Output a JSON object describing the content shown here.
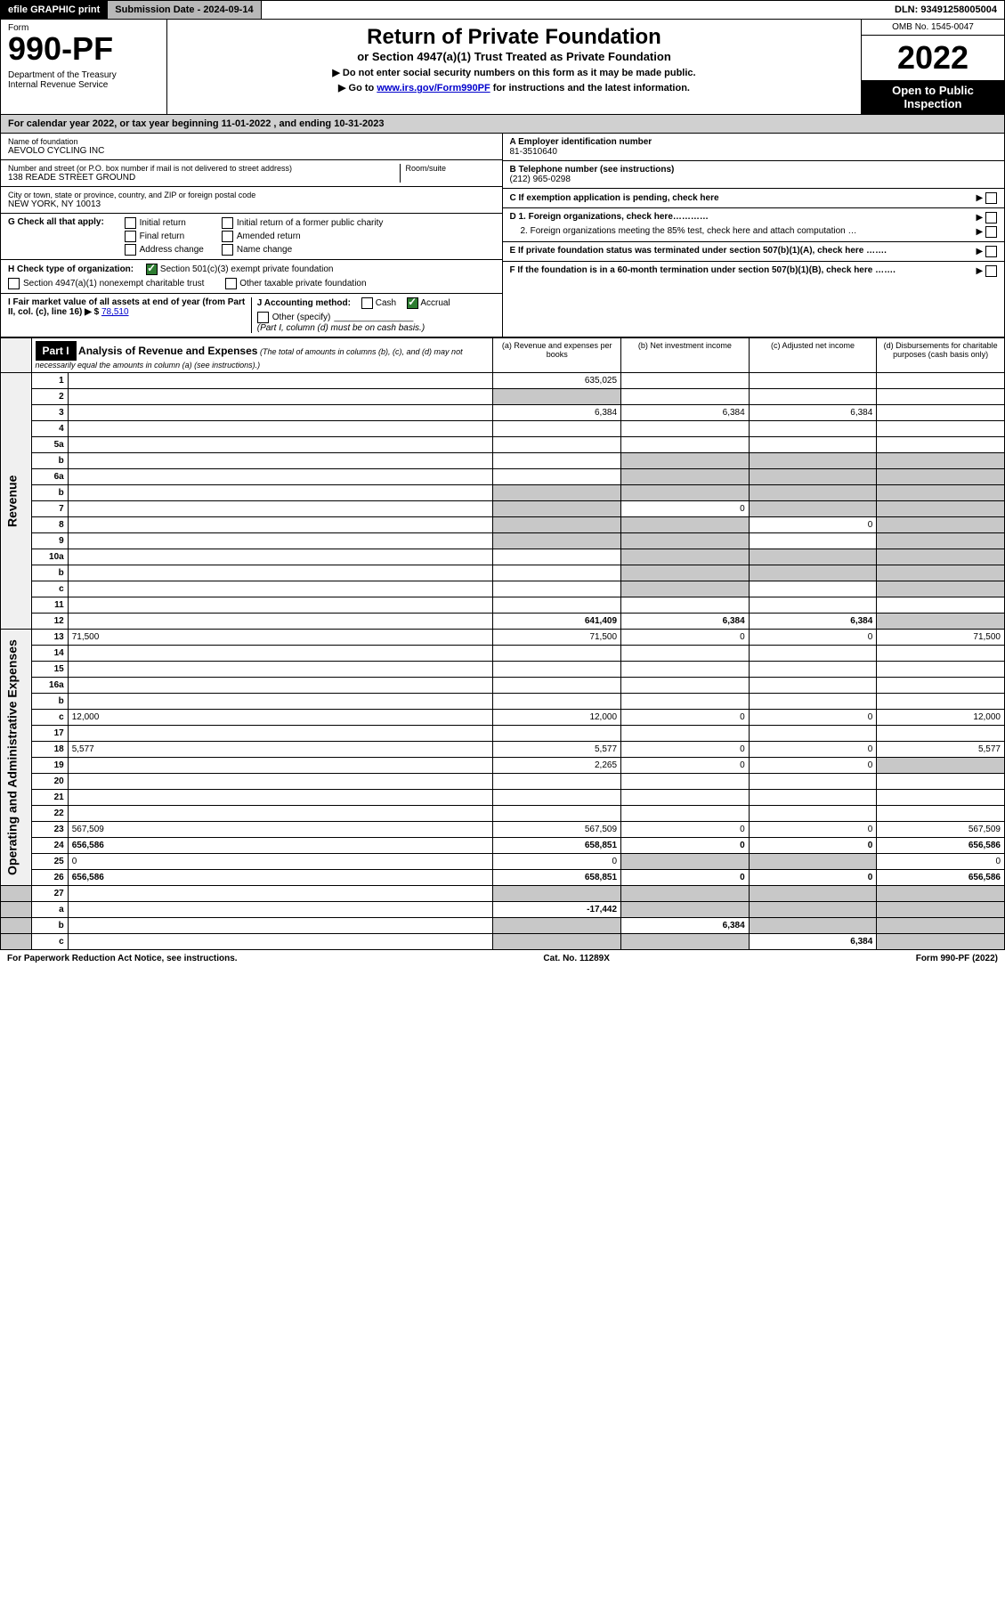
{
  "top_bar": {
    "efile": "efile GRAPHIC print",
    "submission": "Submission Date - 2024-09-14",
    "dln": "DLN: 93491258005004"
  },
  "header": {
    "form_label": "Form",
    "form_number": "990-PF",
    "dept": "Department of the Treasury\nInternal Revenue Service",
    "title": "Return of Private Foundation",
    "subtitle1": "or Section 4947(a)(1) Trust Treated as Private Foundation",
    "subtitle2": "▶ Do not enter social security numbers on this form as it may be made public.",
    "subtitle3_pre": "▶ Go to ",
    "subtitle3_link": "www.irs.gov/Form990PF",
    "subtitle3_post": " for instructions and the latest information.",
    "omb": "OMB No. 1545-0047",
    "year": "2022",
    "open": "Open to Public Inspection"
  },
  "calendar_row": "For calendar year 2022, or tax year beginning 11-01-2022                          , and ending 10-31-2023",
  "info_left": {
    "name_lbl": "Name of foundation",
    "name_val": "AEVOLO CYCLING INC",
    "addr_lbl": "Number and street (or P.O. box number if mail is not delivered to street address)",
    "addr_val": "138 READE STREET GROUND",
    "room_lbl": "Room/suite",
    "city_lbl": "City or town, state or province, country, and ZIP or foreign postal code",
    "city_val": "NEW YORK, NY  10013",
    "g_label": "G Check all that apply:",
    "g_opts": [
      "Initial return",
      "Final return",
      "Address change",
      "Initial return of a former public charity",
      "Amended return",
      "Name change"
    ],
    "h_label": "H Check type of organization:",
    "h_opt1": "Section 501(c)(3) exempt private foundation",
    "h_opt2": "Section 4947(a)(1) nonexempt charitable trust",
    "h_opt3": "Other taxable private foundation",
    "i_label": "I Fair market value of all assets at end of year (from Part II, col. (c), line 16) ▶ $",
    "i_val": "78,510",
    "j_label": "J Accounting method:",
    "j_cash": "Cash",
    "j_accrual": "Accrual",
    "j_other": "Other (specify)",
    "j_note": "(Part I, column (d) must be on cash basis.)"
  },
  "info_right": {
    "a_lbl": "A Employer identification number",
    "a_val": "81-3510640",
    "b_lbl": "B Telephone number (see instructions)",
    "b_val": "(212) 965-0298",
    "c_lbl": "C If exemption application is pending, check here",
    "d1_lbl": "D 1. Foreign organizations, check here…………",
    "d2_lbl": "2. Foreign organizations meeting the 85% test, check here and attach computation …",
    "e_lbl": "E If private foundation status was terminated under section 507(b)(1)(A), check here …….",
    "f_lbl": "F If the foundation is in a 60-month termination under section 507(b)(1)(B), check here ……."
  },
  "part1": {
    "label": "Part I",
    "title": "Analysis of Revenue and Expenses",
    "title_note": "(The total of amounts in columns (b), (c), and (d) may not necessarily equal the amounts in column (a) (see instructions).)",
    "col_a": "(a) Revenue and expenses per books",
    "col_b": "(b) Net investment income",
    "col_c": "(c) Adjusted net income",
    "col_d": "(d) Disbursements for charitable purposes (cash basis only)"
  },
  "sections": {
    "revenue_label": "Revenue",
    "expenses_label": "Operating and Administrative Expenses"
  },
  "rows": [
    {
      "n": "1",
      "d": "",
      "a": "635,025",
      "b": "",
      "c": "",
      "sec": "rev"
    },
    {
      "n": "2",
      "d": "",
      "a": "",
      "b": "",
      "c": "",
      "sec": "rev",
      "gray_a": true
    },
    {
      "n": "3",
      "d": "",
      "a": "6,384",
      "b": "6,384",
      "c": "6,384",
      "sec": "rev"
    },
    {
      "n": "4",
      "d": "",
      "a": "",
      "b": "",
      "c": "",
      "sec": "rev"
    },
    {
      "n": "5a",
      "d": "",
      "a": "",
      "b": "",
      "c": "",
      "sec": "rev"
    },
    {
      "n": "b",
      "d": "",
      "a": "",
      "b": "",
      "c": "",
      "sec": "rev",
      "gray_bcd": true
    },
    {
      "n": "6a",
      "d": "",
      "a": "",
      "b": "",
      "c": "",
      "sec": "rev",
      "gray_bcd": true
    },
    {
      "n": "b",
      "d": "",
      "a": "",
      "b": "",
      "c": "",
      "sec": "rev",
      "gray_all": true
    },
    {
      "n": "7",
      "d": "",
      "a": "",
      "b": "0",
      "c": "",
      "sec": "rev",
      "gray_acd": true
    },
    {
      "n": "8",
      "d": "",
      "a": "",
      "b": "",
      "c": "0",
      "sec": "rev",
      "gray_abd": true
    },
    {
      "n": "9",
      "d": "",
      "a": "",
      "b": "",
      "c": "",
      "sec": "rev",
      "gray_abd": true
    },
    {
      "n": "10a",
      "d": "",
      "a": "",
      "b": "",
      "c": "",
      "sec": "rev",
      "gray_bcd": true
    },
    {
      "n": "b",
      "d": "",
      "a": "",
      "b": "",
      "c": "",
      "sec": "rev",
      "gray_bcd": true
    },
    {
      "n": "c",
      "d": "",
      "a": "",
      "b": "",
      "c": "",
      "sec": "rev",
      "gray_bd": true
    },
    {
      "n": "11",
      "d": "",
      "a": "",
      "b": "",
      "c": "",
      "sec": "rev"
    },
    {
      "n": "12",
      "d": "",
      "a": "641,409",
      "b": "6,384",
      "c": "6,384",
      "sec": "rev",
      "bold": true,
      "gray_d": true
    },
    {
      "n": "13",
      "d": "71,500",
      "a": "71,500",
      "b": "0",
      "c": "0",
      "sec": "exp"
    },
    {
      "n": "14",
      "d": "",
      "a": "",
      "b": "",
      "c": "",
      "sec": "exp"
    },
    {
      "n": "15",
      "d": "",
      "a": "",
      "b": "",
      "c": "",
      "sec": "exp"
    },
    {
      "n": "16a",
      "d": "",
      "a": "",
      "b": "",
      "c": "",
      "sec": "exp"
    },
    {
      "n": "b",
      "d": "",
      "a": "",
      "b": "",
      "c": "",
      "sec": "exp"
    },
    {
      "n": "c",
      "d": "12,000",
      "a": "12,000",
      "b": "0",
      "c": "0",
      "sec": "exp"
    },
    {
      "n": "17",
      "d": "",
      "a": "",
      "b": "",
      "c": "",
      "sec": "exp"
    },
    {
      "n": "18",
      "d": "5,577",
      "a": "5,577",
      "b": "0",
      "c": "0",
      "sec": "exp"
    },
    {
      "n": "19",
      "d": "",
      "a": "2,265",
      "b": "0",
      "c": "0",
      "sec": "exp",
      "gray_d": true
    },
    {
      "n": "20",
      "d": "",
      "a": "",
      "b": "",
      "c": "",
      "sec": "exp"
    },
    {
      "n": "21",
      "d": "",
      "a": "",
      "b": "",
      "c": "",
      "sec": "exp"
    },
    {
      "n": "22",
      "d": "",
      "a": "",
      "b": "",
      "c": "",
      "sec": "exp"
    },
    {
      "n": "23",
      "d": "567,509",
      "a": "567,509",
      "b": "0",
      "c": "0",
      "sec": "exp"
    },
    {
      "n": "24",
      "d": "656,586",
      "a": "658,851",
      "b": "0",
      "c": "0",
      "sec": "exp",
      "bold": true
    },
    {
      "n": "25",
      "d": "0",
      "a": "0",
      "b": "",
      "c": "",
      "sec": "exp",
      "gray_bc": true
    },
    {
      "n": "26",
      "d": "656,586",
      "a": "658,851",
      "b": "0",
      "c": "0",
      "sec": "exp",
      "bold": true
    },
    {
      "n": "27",
      "d": "",
      "a": "",
      "b": "",
      "c": "",
      "sec": "none",
      "gray_all": true
    },
    {
      "n": "a",
      "d": "",
      "a": "-17,442",
      "b": "",
      "c": "",
      "sec": "none",
      "bold": true,
      "gray_bcd": true
    },
    {
      "n": "b",
      "d": "",
      "a": "",
      "b": "6,384",
      "c": "",
      "sec": "none",
      "bold": true,
      "gray_acd": true
    },
    {
      "n": "c",
      "d": "",
      "a": "",
      "b": "",
      "c": "6,384",
      "sec": "none",
      "bold": true,
      "gray_abd": true
    }
  ],
  "footer": {
    "left": "For Paperwork Reduction Act Notice, see instructions.",
    "center": "Cat. No. 11289X",
    "right": "Form 990-PF (2022)"
  },
  "colors": {
    "black": "#000000",
    "white": "#ffffff",
    "gray_header": "#b8b8b8",
    "gray_cal": "#d0d0d0",
    "gray_cell": "#c8c8c8",
    "link": "#0000cc",
    "check_green": "#2e7d32"
  }
}
